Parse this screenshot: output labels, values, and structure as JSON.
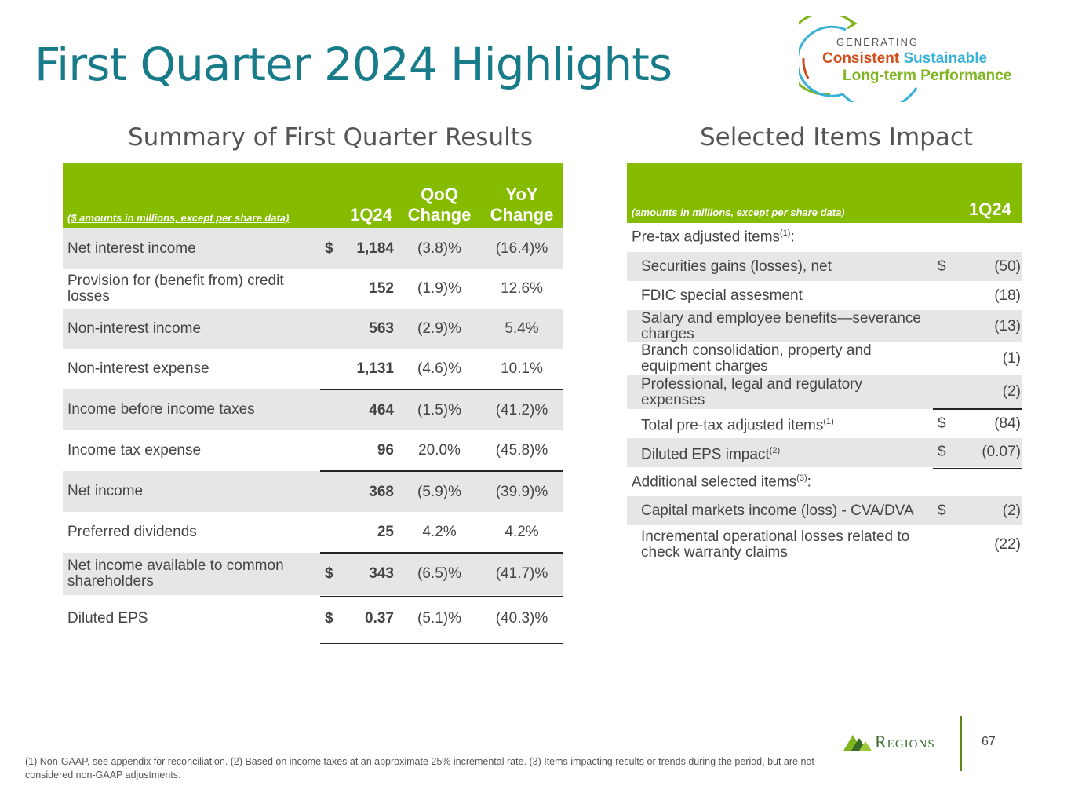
{
  "title": "First Quarter 2024 Highlights",
  "logo": {
    "generating": "GENERATING",
    "consistent": "Consistent",
    "sustainable": "Sustainable",
    "longterm": "Long-term Performance"
  },
  "left": {
    "section_title": "Summary of First Quarter Results",
    "header": {
      "caption": "($ amounts in millions, except per share data)",
      "c1": "1Q24",
      "c2a": "QoQ",
      "c2b": "Change",
      "c3a": "YoY",
      "c3b": "Change"
    },
    "rows": [
      {
        "label": "Net interest income",
        "dollar": "$",
        "value": "1,184",
        "qoq": "(3.8)%",
        "yoy": "(16.4)%"
      },
      {
        "label": "Provision for (benefit from) credit losses",
        "dollar": "",
        "value": "152",
        "qoq": "(1.9)%",
        "yoy": "12.6%"
      },
      {
        "label": "Non-interest income",
        "dollar": "",
        "value": "563",
        "qoq": "(2.9)%",
        "yoy": "5.4%"
      },
      {
        "label": "Non-interest expense",
        "dollar": "",
        "value": "1,131",
        "qoq": "(4.6)%",
        "yoy": "10.1%"
      },
      {
        "label": "Income before income taxes",
        "dollar": "",
        "value": "464",
        "qoq": "(1.5)%",
        "yoy": "(41.2)%"
      },
      {
        "label": "Income tax expense",
        "dollar": "",
        "value": "96",
        "qoq": "20.0%",
        "yoy": "(45.8)%"
      },
      {
        "label": "Net income",
        "dollar": "",
        "value": "368",
        "qoq": "(5.9)%",
        "yoy": "(39.9)%"
      },
      {
        "label": "Preferred dividends",
        "dollar": "",
        "value": "25",
        "qoq": "4.2%",
        "yoy": "4.2%"
      },
      {
        "label": "Net income available to common shareholders",
        "dollar": "$",
        "value": "343",
        "qoq": "(6.5)%",
        "yoy": "(41.7)%"
      },
      {
        "label": "Diluted EPS",
        "dollar": "$",
        "value": "0.37",
        "qoq": "(5.1)%",
        "yoy": "(40.3)%"
      }
    ]
  },
  "right": {
    "section_title": "Selected Items Impact",
    "header": {
      "caption": "(amounts in millions, except per share data)",
      "c1": "1Q24"
    },
    "pretax_label": "Pre-tax adjusted items",
    "pretax_sup": "(1)",
    "pretax_colon": ":",
    "items": [
      {
        "label": "Securities gains (losses), net",
        "dollar": "$",
        "value": "(50)"
      },
      {
        "label": "FDIC special assesment",
        "dollar": "",
        "value": "(18)"
      },
      {
        "label": "Salary and employee benefits—severance charges",
        "dollar": "",
        "value": "(13)"
      },
      {
        "label": "Branch consolidation, property and equipment charges",
        "dollar": "",
        "value": "(1)"
      },
      {
        "label": "Professional, legal and regulatory expenses",
        "dollar": "",
        "value": "(2)"
      }
    ],
    "total": {
      "label": "Total pre-tax adjusted items",
      "sup": "(1)",
      "dollar": "$",
      "value": "(84)"
    },
    "eps": {
      "label": "Diluted EPS impact",
      "sup": "(2)",
      "dollar": "$",
      "value": "(0.07)"
    },
    "additional_label": "Additional selected items",
    "additional_sup": "(3)",
    "additional_colon": ":",
    "additional": [
      {
        "label": "Capital markets income (loss) - CVA/DVA",
        "dollar": "$",
        "value": "(2)"
      },
      {
        "label": "Incremental operational losses related to check warranty claims",
        "dollar": "",
        "value": "(22)"
      }
    ]
  },
  "footnote": "(1) Non-GAAP, see appendix for reconciliation. (2) Based on income taxes at an approximate 25% incremental rate. (3) Items impacting results or trends during the period, but are not considered non-GAAP adjustments.",
  "brand": "Regions",
  "page_number": "67"
}
